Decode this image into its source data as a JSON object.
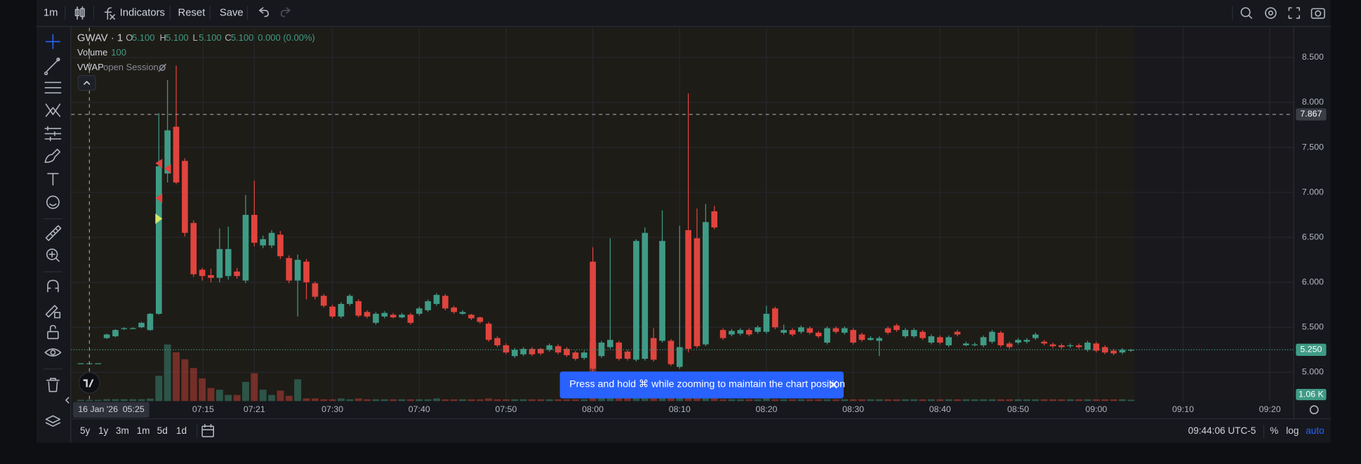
{
  "toolbar": {
    "interval": "1m",
    "indicators": "Indicators",
    "reset": "Reset",
    "save": "Save"
  },
  "chart_data": {
    "type": "candlestick",
    "symbol": "GWAV · 1",
    "legend": {
      "o_label": "O",
      "open": "5.100",
      "h_label": "H",
      "high": "5.100",
      "l_label": "L",
      "low": "5.100",
      "c_label": "C",
      "close": "5.100",
      "change": "0.000 (0.00%)",
      "volume_label": "Volume",
      "volume": "100",
      "vwap_label": "VWAP",
      "vwap_settings": "open Session"
    },
    "x": [
      1,
      2,
      3,
      4,
      5,
      6,
      7,
      8,
      9,
      10,
      11,
      12,
      13,
      14,
      15,
      16,
      17,
      18,
      19,
      20,
      21,
      22,
      23,
      24,
      25,
      26,
      27,
      28,
      29,
      30,
      31,
      32,
      33,
      34,
      35,
      36,
      37,
      38,
      39,
      40,
      41,
      42,
      43,
      44,
      45,
      46,
      47,
      48,
      49,
      50,
      51,
      52,
      53,
      54,
      55,
      56,
      57,
      58,
      59,
      60,
      61,
      62,
      63,
      64,
      65,
      66,
      67,
      68,
      69,
      70,
      71,
      72,
      73,
      74,
      75,
      76,
      77,
      78,
      79,
      80,
      81,
      82,
      83,
      84,
      85,
      86,
      87,
      88,
      89,
      90,
      91,
      92,
      93,
      94,
      95,
      96,
      97,
      98,
      99,
      100,
      101,
      102,
      103,
      104,
      105,
      106,
      107,
      108,
      109,
      110,
      111,
      112,
      113,
      114,
      115,
      116,
      117,
      118,
      119,
      120,
      121,
      122
    ],
    "open": [
      5.1,
      5.1,
      5.1,
      5.38,
      5.4,
      5.48,
      5.49,
      5.5,
      5.47,
      5.65,
      7.21,
      7.73,
      7.35,
      6.66,
      6.14,
      6.08,
      6.05,
      6.07,
      6.12,
      6.02,
      6.75,
      6.41,
      6.41,
      6.53,
      6.27,
      6.02,
      6.23,
      5.99,
      5.85,
      5.73,
      5.62,
      5.76,
      5.79,
      5.67,
      5.55,
      5.62,
      5.64,
      5.61,
      5.64,
      5.65,
      5.69,
      5.76,
      5.85,
      5.72,
      5.65,
      5.64,
      5.61,
      5.54,
      5.38,
      5.3,
      5.18,
      5.2,
      5.26,
      5.26,
      5.25,
      5.29,
      5.26,
      5.22,
      5.16,
      6.23,
      5.18,
      5.28,
      5.33,
      5.23,
      5.14,
      5.15,
      5.38,
      5.35,
      5.35,
      5.06,
      6.58,
      6.49,
      5.31,
      6.79,
      5.47,
      5.42,
      5.43,
      5.47,
      5.45,
      5.45,
      5.71,
      5.44,
      5.47,
      5.45,
      5.49,
      5.44,
      5.33,
      5.49,
      5.44,
      5.47,
      5.42,
      5.36,
      5.35,
      5.49,
      5.52,
      5.4,
      5.4,
      5.45,
      5.33,
      5.39,
      5.3,
      5.45,
      5.3,
      5.3,
      5.3,
      5.34,
      5.44,
      5.32,
      5.33,
      5.34,
      5.38,
      5.34,
      5.31,
      5.3,
      5.29,
      5.3,
      5.25,
      5.32,
      5.28,
      5.24,
      5.22,
      5.24
    ],
    "high": [
      5.1,
      5.1,
      5.1,
      5.43,
      5.48,
      5.5,
      5.5,
      5.56,
      5.66,
      7.88,
      8.25,
      8.41,
      7.38,
      6.69,
      6.16,
      6.15,
      6.6,
      6.62,
      6.16,
      6.97,
      7.13,
      6.52,
      6.58,
      6.57,
      6.3,
      6.31,
      6.26,
      6.01,
      5.87,
      5.75,
      5.78,
      5.87,
      5.81,
      5.69,
      5.67,
      5.68,
      5.66,
      5.66,
      5.66,
      5.73,
      5.81,
      5.88,
      5.87,
      5.74,
      5.69,
      5.65,
      5.62,
      5.56,
      5.4,
      5.32,
      5.27,
      5.28,
      5.28,
      5.27,
      5.32,
      5.31,
      5.28,
      5.24,
      5.24,
      6.39,
      5.35,
      6.49,
      5.35,
      5.25,
      6.48,
      6.61,
      5.49,
      6.8,
      5.37,
      6.63,
      8.1,
      6.82,
      6.87,
      6.85,
      5.49,
      5.48,
      5.49,
      5.49,
      5.52,
      5.74,
      5.73,
      5.53,
      5.49,
      5.52,
      5.51,
      5.46,
      5.51,
      5.51,
      5.51,
      5.49,
      5.44,
      5.4,
      5.4,
      5.51,
      5.54,
      5.49,
      5.49,
      5.47,
      5.42,
      5.41,
      5.41,
      5.47,
      5.34,
      5.33,
      5.41,
      5.47,
      5.46,
      5.34,
      5.38,
      5.38,
      5.44,
      5.36,
      5.33,
      5.32,
      5.32,
      5.32,
      5.35,
      5.34,
      5.3,
      5.26,
      5.27,
      5.26
    ],
    "low": [
      5.1,
      5.1,
      5.1,
      5.37,
      5.39,
      5.47,
      5.48,
      5.49,
      5.46,
      5.64,
      7.11,
      7.09,
      6.51,
      6.06,
      6.02,
      6.0,
      6.0,
      6.03,
      6.04,
      5.99,
      6.4,
      6.38,
      6.38,
      6.26,
      5.99,
      5.62,
      5.81,
      5.81,
      5.72,
      5.6,
      5.6,
      5.74,
      5.61,
      5.6,
      5.53,
      5.6,
      5.6,
      5.6,
      5.53,
      5.63,
      5.67,
      5.74,
      5.69,
      5.65,
      5.64,
      5.58,
      5.54,
      5.34,
      5.28,
      5.2,
      5.16,
      5.18,
      5.18,
      5.19,
      5.23,
      5.2,
      5.17,
      5.13,
      5.14,
      5.01,
      5.16,
      5.26,
      5.13,
      5.13,
      5.12,
      5.13,
      5.12,
      5.33,
      5.07,
      5.04,
      5.22,
      5.27,
      5.29,
      6.59,
      5.36,
      5.4,
      5.41,
      5.4,
      5.43,
      5.43,
      5.48,
      5.42,
      5.4,
      5.43,
      5.42,
      5.38,
      5.31,
      5.43,
      5.42,
      5.31,
      5.34,
      5.35,
      5.18,
      5.42,
      5.45,
      5.38,
      5.38,
      5.36,
      5.31,
      5.31,
      5.28,
      5.4,
      5.29,
      5.29,
      5.28,
      5.32,
      5.28,
      5.26,
      5.31,
      5.32,
      5.36,
      5.3,
      5.27,
      5.26,
      5.27,
      5.26,
      5.23,
      5.22,
      5.2,
      5.19,
      5.2,
      5.23
    ],
    "close": [
      5.1,
      5.1,
      5.1,
      5.42,
      5.47,
      5.49,
      5.49,
      5.55,
      5.65,
      7.29,
      7.69,
      7.11,
      6.55,
      6.09,
      6.07,
      6.05,
      6.37,
      6.37,
      6.07,
      6.75,
      6.44,
      6.48,
      6.55,
      6.29,
      6.02,
      6.25,
      6.0,
      5.84,
      5.74,
      5.62,
      5.76,
      5.85,
      5.63,
      5.62,
      5.65,
      5.66,
      5.61,
      5.64,
      5.55,
      5.71,
      5.79,
      5.86,
      5.71,
      5.67,
      5.67,
      5.6,
      5.56,
      5.36,
      5.3,
      5.22,
      5.25,
      5.26,
      5.2,
      5.21,
      5.3,
      5.22,
      5.19,
      5.15,
      5.22,
      5.04,
      5.33,
      5.36,
      5.15,
      5.15,
      6.46,
      6.55,
      5.14,
      6.46,
      5.09,
      5.28,
      5.26,
      5.29,
      6.67,
      6.61,
      5.38,
      5.46,
      5.47,
      5.42,
      5.5,
      5.65,
      5.5,
      5.47,
      5.42,
      5.5,
      5.44,
      5.4,
      5.49,
      5.45,
      5.49,
      5.33,
      5.36,
      5.38,
      5.38,
      5.44,
      5.47,
      5.47,
      5.47,
      5.38,
      5.4,
      5.33,
      5.39,
      5.42,
      5.32,
      5.31,
      5.39,
      5.45,
      5.3,
      5.28,
      5.36,
      5.36,
      5.42,
      5.32,
      5.29,
      5.28,
      5.3,
      5.28,
      5.33,
      5.24,
      5.22,
      5.21,
      5.25,
      5.25
    ],
    "up_color": "#3f9b86",
    "down_color": "#e0443e",
    "volume": {
      "values": [
        1000,
        1000,
        1000,
        1500,
        1500,
        1500,
        1500,
        1500,
        2000,
        20300,
        45500,
        39200,
        33600,
        26600,
        18200,
        10500,
        9100,
        4900,
        4900,
        15400,
        22400,
        9100,
        4900,
        8400,
        4200,
        17500,
        2100,
        2100,
        1400,
        1400,
        2100,
        1400,
        2100,
        1400,
        1400,
        1400,
        1400,
        1400,
        1400,
        1400,
        1400,
        2100,
        1400,
        1400,
        1400,
        1400,
        1400,
        2100,
        1400,
        1400,
        1400,
        1400,
        1400,
        1400,
        1400,
        1400,
        1400,
        1400,
        1400,
        46900,
        4200,
        5600,
        3500,
        2800,
        9100,
        8400,
        4200,
        7000,
        4900,
        6300,
        9800,
        7000,
        6300,
        4200,
        1400,
        1400,
        1400,
        1400,
        1400,
        2100,
        1400,
        1400,
        1400,
        1400,
        1400,
        1400,
        1400,
        1400,
        1400,
        1400,
        1400,
        1400,
        1400,
        1400,
        1400,
        1400,
        1400,
        1400,
        1400,
        1400,
        1400,
        1400,
        1400,
        1400,
        1400,
        1400,
        1400,
        1400,
        1400,
        1400,
        1400,
        1400,
        1400,
        1400,
        1400,
        1400,
        1400,
        1400,
        1400,
        1400,
        1400,
        1060
      ],
      "ylim": [
        0,
        300000
      ],
      "last": {
        "value": 1060,
        "label": "1.06 K"
      }
    },
    "xlim": [
      -0.1,
      140.7
    ],
    "xticks": [
      {
        "value": 15.1,
        "label": "07:15"
      },
      {
        "value": 21,
        "label": "07:21"
      },
      {
        "value": 30,
        "label": "07:30"
      },
      {
        "value": 40,
        "label": "07:40"
      },
      {
        "value": 50,
        "label": "07:50"
      },
      {
        "value": 60,
        "label": "08:00"
      },
      {
        "value": 70,
        "label": "08:10"
      },
      {
        "value": 80,
        "label": "08:20"
      },
      {
        "value": 90,
        "label": "08:30"
      },
      {
        "value": 100,
        "label": "08:40"
      },
      {
        "value": 109,
        "label": "08:50"
      },
      {
        "value": 118,
        "label": "09:00"
      },
      {
        "value": 128,
        "label": "09:10"
      },
      {
        "value": 138,
        "label": "09:20"
      }
    ],
    "ylim": [
      4.68,
      8.83
    ],
    "yticks": [
      {
        "value": 5,
        "label": "5.000"
      },
      {
        "value": 5.5,
        "label": "5.500"
      },
      {
        "value": 6,
        "label": "6.000"
      },
      {
        "value": 6.5,
        "label": "6.500"
      },
      {
        "value": 7,
        "label": "7.000"
      },
      {
        "value": 7.5,
        "label": "7.500"
      },
      {
        "value": 8,
        "label": "8.000"
      },
      {
        "value": 8.5,
        "label": "8.500"
      }
    ],
    "grid": true,
    "crosshair": {
      "x": 2,
      "time_label": "16 Jan '26  05:25",
      "price": {
        "value": 7.867,
        "label": "7.867"
      }
    },
    "last_price": {
      "value": 5.25,
      "label": "5.250"
    }
  },
  "tooltip": "Press and hold ⌘ while zooming to maintain the chart position",
  "bottom_bar": {
    "ranges": [
      "5y",
      "1y",
      "3m",
      "1m",
      "5d",
      "1d"
    ],
    "clock": "09:44:06 UTC-5",
    "percent": "%",
    "log": "log",
    "auto": "auto"
  }
}
